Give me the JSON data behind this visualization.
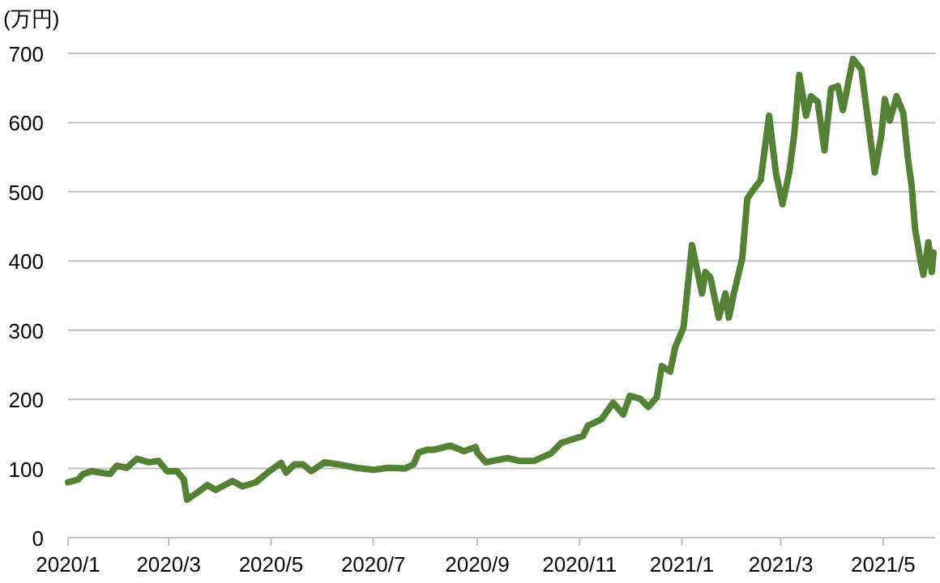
{
  "chart_data": {
    "type": "line",
    "ylabel": "(万円)",
    "color": "#548235",
    "line_style": "solid",
    "grid": "y",
    "xlim": [
      "2020-01-01",
      "2021-06-01"
    ],
    "ylim": [
      0,
      700
    ],
    "yticks": [
      0,
      100,
      200,
      300,
      400,
      500,
      600,
      700
    ],
    "xticks": [
      {
        "value": "2020-01-01",
        "label": "2020/1"
      },
      {
        "value": "2020-03-01",
        "label": "2020/3"
      },
      {
        "value": "2020-05-01",
        "label": "2020/5"
      },
      {
        "value": "2020-07-01",
        "label": "2020/7"
      },
      {
        "value": "2020-09-01",
        "label": "2020/9"
      },
      {
        "value": "2020-11-01",
        "label": "2020/11"
      },
      {
        "value": "2021-01-01",
        "label": "2021/1"
      },
      {
        "value": "2021-03-01",
        "label": "2021/3"
      },
      {
        "value": "2021-05-01",
        "label": "2021/5"
      }
    ],
    "x": [
      "2020-01-01",
      "2020-01-07",
      "2020-01-10",
      "2020-01-15",
      "2020-01-26",
      "2020-01-30",
      "2020-02-05",
      "2020-02-11",
      "2020-02-18",
      "2020-02-24",
      "2020-02-29",
      "2020-03-06",
      "2020-03-10",
      "2020-03-12",
      "2020-03-18",
      "2020-03-24",
      "2020-03-29",
      "2020-04-08",
      "2020-04-14",
      "2020-04-22",
      "2020-04-30",
      "2020-05-07",
      "2020-05-10",
      "2020-05-15",
      "2020-05-20",
      "2020-05-25",
      "2020-06-02",
      "2020-06-10",
      "2020-06-21",
      "2020-07-01",
      "2020-07-10",
      "2020-07-20",
      "2020-07-25",
      "2020-07-28",
      "2020-08-02",
      "2020-08-06",
      "2020-08-16",
      "2020-08-24",
      "2020-08-31",
      "2020-09-01",
      "2020-09-06",
      "2020-09-19",
      "2020-09-26",
      "2020-10-05",
      "2020-10-15",
      "2020-10-21",
      "2020-11-03",
      "2020-11-06",
      "2020-11-14",
      "2020-11-21",
      "2020-11-27",
      "2020-12-01",
      "2020-12-07",
      "2020-12-12",
      "2020-12-17",
      "2020-12-20",
      "2020-12-25",
      "2020-12-28",
      "2021-01-02",
      "2021-01-07",
      "2021-01-13",
      "2021-01-15",
      "2021-01-18",
      "2021-01-23",
      "2021-01-27",
      "2021-01-29",
      "2021-02-01",
      "2021-02-06",
      "2021-02-09",
      "2021-02-12",
      "2021-02-17",
      "2021-02-22",
      "2021-02-26",
      "2021-03-02",
      "2021-03-06",
      "2021-03-09",
      "2021-03-12",
      "2021-03-16",
      "2021-03-19",
      "2021-03-23",
      "2021-03-27",
      "2021-03-31",
      "2021-04-04",
      "2021-04-07",
      "2021-04-13",
      "2021-04-18",
      "2021-04-22",
      "2021-04-26",
      "2021-04-30",
      "2021-05-02",
      "2021-05-05",
      "2021-05-09",
      "2021-05-13",
      "2021-05-16",
      "2021-05-18",
      "2021-05-20",
      "2021-05-23",
      "2021-05-25",
      "2021-05-28",
      "2021-05-30",
      "2021-05-31"
    ],
    "values": [
      80,
      84,
      92,
      96,
      92,
      104,
      101,
      114,
      109,
      111,
      96,
      96,
      84,
      55,
      65,
      76,
      69,
      82,
      74,
      80,
      96,
      108,
      94,
      106,
      106,
      96,
      109,
      106,
      101,
      98,
      101,
      100,
      106,
      123,
      127,
      127,
      133,
      125,
      131,
      123,
      109,
      115,
      111,
      111,
      122,
      137,
      147,
      162,
      171,
      195,
      178,
      205,
      201,
      189,
      203,
      248,
      240,
      275,
      304,
      423,
      353,
      384,
      376,
      318,
      353,
      318,
      353,
      404,
      490,
      501,
      517,
      610,
      528,
      482,
      528,
      583,
      669,
      610,
      638,
      630,
      560,
      649,
      653,
      618,
      692,
      677,
      603,
      528,
      583,
      634,
      603,
      638,
      614,
      544,
      509,
      447,
      404,
      380,
      427,
      384,
      412
    ]
  }
}
